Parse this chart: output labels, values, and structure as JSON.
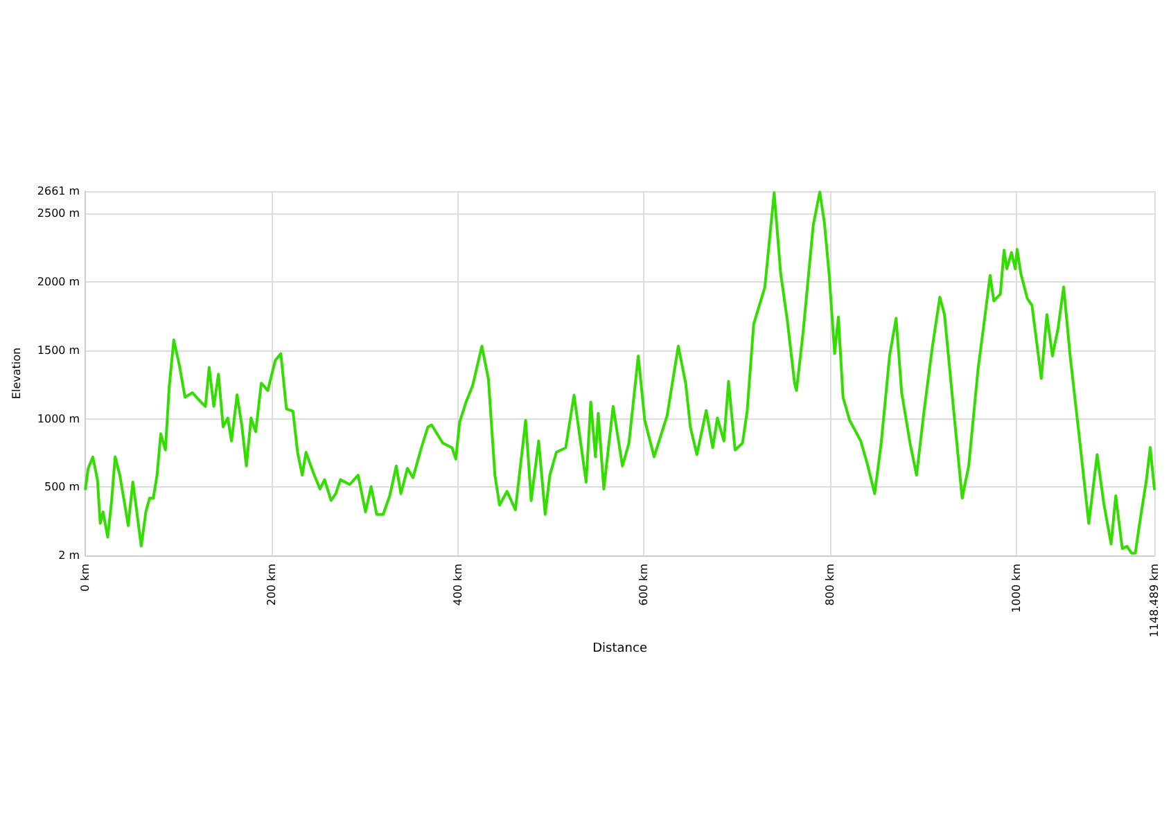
{
  "chart_data": {
    "type": "line",
    "xlabel": "Distance",
    "ylabel": "Elevation",
    "marker": "none",
    "grid": true,
    "line_style": "solid",
    "xlim": [
      0,
      1148.489
    ],
    "xticks": [
      {
        "value": 0,
        "label": "0 km"
      },
      {
        "value": 200,
        "label": "200 km"
      },
      {
        "value": 400,
        "label": "400 km"
      },
      {
        "value": 600,
        "label": "600 km"
      },
      {
        "value": 800,
        "label": "800 km"
      },
      {
        "value": 1000,
        "label": "1000 km"
      },
      {
        "value": 1148.489,
        "label": "1148.489 km"
      }
    ],
    "ylim": [
      2,
      2661
    ],
    "yticks": [
      {
        "value": 2,
        "label": "2 m"
      },
      {
        "value": 500,
        "label": "500 m"
      },
      {
        "value": 1000,
        "label": "1000 m"
      },
      {
        "value": 1500,
        "label": "1500 m"
      },
      {
        "value": 2000,
        "label": "2000 m"
      },
      {
        "value": 2500,
        "label": "2500 m"
      },
      {
        "value": 2661,
        "label": "2661 m"
      }
    ],
    "series": [
      {
        "color": "#33dd00",
        "x": [
          0,
          3,
          8,
          13,
          16,
          19,
          24,
          28,
          32,
          37,
          42,
          46,
          51,
          54,
          60,
          65,
          69,
          73,
          77,
          81,
          86,
          90,
          95,
          101,
          107,
          115,
          124,
          129,
          133,
          138,
          143,
          148,
          153,
          157,
          163,
          168,
          173,
          178,
          183,
          189,
          196,
          204,
          210,
          216,
          223,
          228,
          233,
          237,
          245,
          252,
          257,
          264,
          269,
          274,
          284,
          293,
          301,
          307,
          313,
          320,
          327,
          334,
          339,
          346,
          352,
          361,
          368,
          372,
          384,
          394,
          398,
          402,
          409,
          416,
          426,
          433,
          440,
          445,
          453,
          462,
          473,
          479,
          487,
          494,
          499,
          506,
          516,
          525,
          538,
          543,
          548,
          551,
          557,
          567,
          577,
          584,
          594,
          601,
          611,
          625,
          637,
          645,
          650,
          657,
          667,
          674,
          679,
          686,
          691,
          698,
          706,
          711,
          718,
          730,
          740,
          747,
          754,
          762,
          764,
          771,
          782,
          789,
          794,
          799,
          805,
          809,
          814,
          821,
          833,
          840,
          848,
          855,
          864,
          871,
          877,
          886,
          893,
          901,
          910,
          918,
          923,
          932,
          942,
          949,
          959,
          966,
          972,
          976,
          983,
          987,
          990,
          995,
          999,
          1001,
          1005,
          1012,
          1017,
          1027,
          1033,
          1039,
          1045,
          1051,
          1058,
          1068,
          1078,
          1087,
          1094,
          1102,
          1107,
          1114,
          1119,
          1124,
          1128,
          1133,
          1140,
          1144,
          1148.489
        ],
        "values": [
          487,
          637,
          720,
          555,
          237,
          320,
          136,
          387,
          722,
          588,
          387,
          220,
          538,
          387,
          70,
          320,
          420,
          420,
          588,
          890,
          772,
          1225,
          1575,
          1390,
          1157,
          1190,
          1122,
          1090,
          1375,
          1090,
          1325,
          940,
          1005,
          838,
          1175,
          955,
          655,
          1005,
          905,
          1260,
          1206,
          1425,
          1475,
          1072,
          1055,
          755,
          588,
          755,
          605,
          487,
          555,
          403,
          452,
          555,
          520,
          588,
          320,
          505,
          302,
          302,
          437,
          655,
          453,
          638,
          570,
          788,
          940,
          955,
          822,
          788,
          705,
          972,
          1122,
          1240,
          1530,
          1290,
          588,
          370,
          470,
          335,
          988,
          402,
          838,
          302,
          588,
          755,
          788,
          1172,
          537,
          1122,
          722,
          1039,
          487,
          1090,
          655,
          822,
          1458,
          988,
          722,
          1022,
          1530,
          1256,
          938,
          738,
          1060,
          788,
          1005,
          838,
          1273,
          772,
          822,
          1055,
          1690,
          1960,
          2650,
          2060,
          1725,
          1256,
          1206,
          1625,
          2412,
          2655,
          2430,
          2060,
          1475,
          1742,
          1157,
          990,
          838,
          672,
          453,
          822,
          1458,
          1733,
          1190,
          822,
          588,
          1055,
          1525,
          1887,
          1760,
          1122,
          420,
          655,
          1358,
          1725,
          2045,
          1860,
          1910,
          2230,
          2095,
          2213,
          2095,
          2236,
          2060,
          1877,
          1827,
          1293,
          1760,
          1458,
          1660,
          1962,
          1458,
          856,
          236,
          738,
          387,
          86,
          437,
          52,
          69,
          19,
          19,
          253,
          555,
          790,
          487
        ]
      }
    ]
  }
}
